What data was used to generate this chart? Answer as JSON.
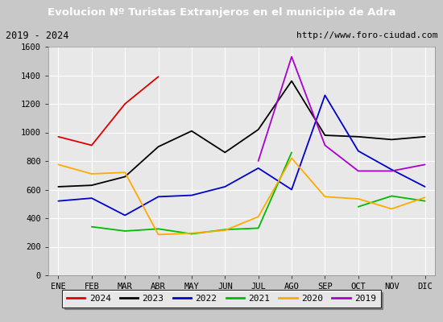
{
  "title": "Evolucion Nº Turistas Extranjeros en el municipio de Adra",
  "subtitle_left": "2019 - 2024",
  "subtitle_right": "http://www.foro-ciudad.com",
  "months": [
    "ENE",
    "FEB",
    "MAR",
    "ABR",
    "MAY",
    "JUN",
    "JUL",
    "AGO",
    "SEP",
    "OCT",
    "NOV",
    "DIC"
  ],
  "series": {
    "2024": {
      "color": "#dd0000",
      "data": [
        970,
        910,
        1200,
        1390,
        null,
        null,
        null,
        null,
        null,
        null,
        null,
        null
      ]
    },
    "2023": {
      "color": "#000000",
      "data": [
        620,
        630,
        690,
        900,
        1010,
        860,
        1020,
        1360,
        980,
        970,
        950,
        970
      ]
    },
    "2022": {
      "color": "#0000cc",
      "data": [
        520,
        540,
        420,
        550,
        560,
        620,
        750,
        600,
        1260,
        870,
        740,
        620
      ]
    },
    "2021": {
      "color": "#00bb00",
      "data": [
        null,
        340,
        310,
        325,
        290,
        320,
        330,
        860,
        null,
        480,
        555,
        520
      ]
    },
    "2020": {
      "color": "#ffaa00",
      "data": [
        775,
        710,
        720,
        285,
        295,
        315,
        410,
        820,
        550,
        535,
        465,
        545
      ]
    },
    "2019": {
      "color": "#aa00cc",
      "data": [
        null,
        null,
        null,
        null,
        null,
        null,
        800,
        1530,
        910,
        730,
        730,
        775
      ]
    }
  },
  "ylim": [
    0,
    1600
  ],
  "yticks": [
    0,
    200,
    400,
    600,
    800,
    1000,
    1200,
    1400,
    1600
  ],
  "title_bg_color": "#5b9bd5",
  "title_text_color": "#ffffff",
  "subtitle_bg_color": "#f5f5f5",
  "plot_bg_color": "#e8e8e8",
  "outer_bg_color": "#c8c8c8",
  "grid_color": "#ffffff",
  "legend_order": [
    "2024",
    "2023",
    "2022",
    "2021",
    "2020",
    "2019"
  ]
}
